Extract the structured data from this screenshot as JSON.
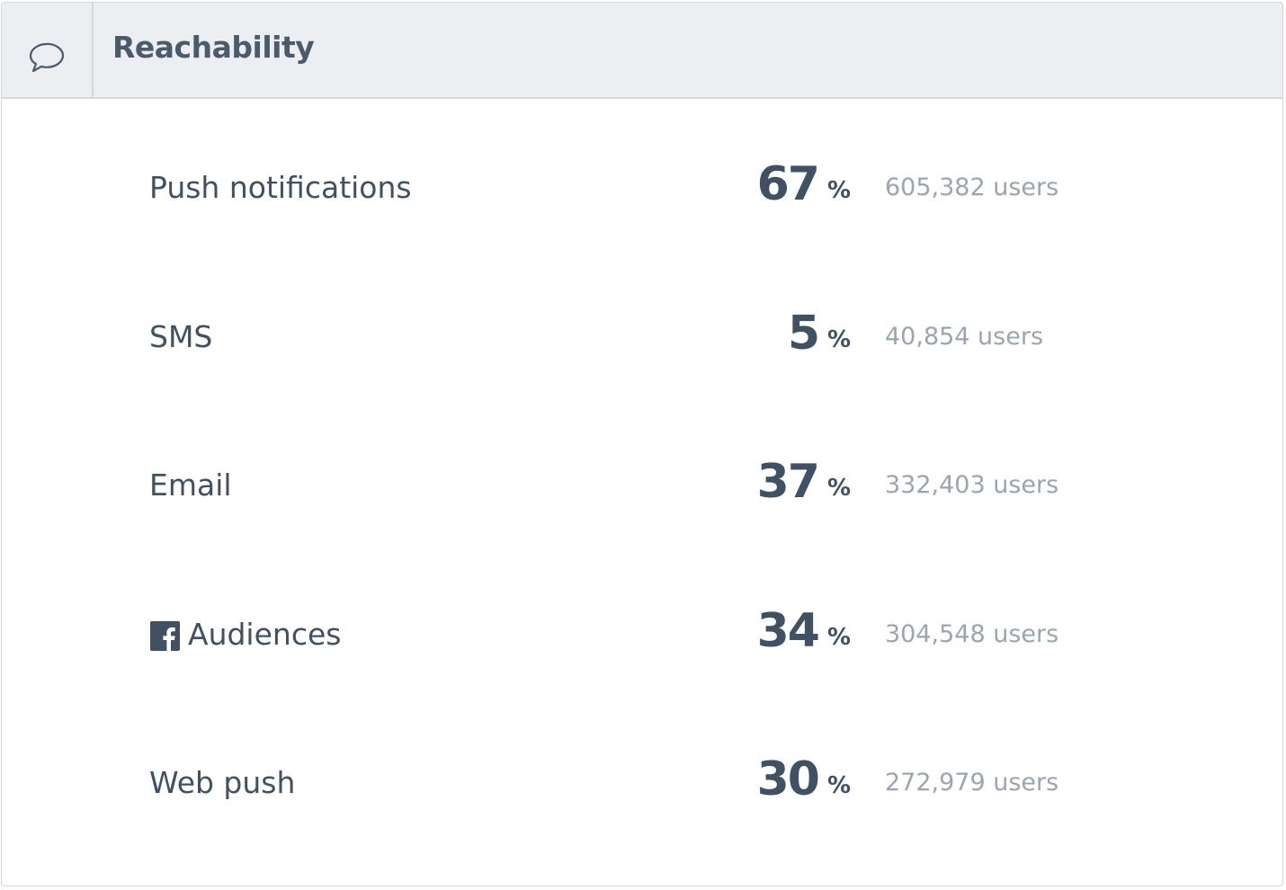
{
  "header": {
    "title": "Reachability"
  },
  "rows": [
    {
      "label": "Push notifications",
      "percent": "67",
      "unit": "%",
      "users": "605,382 users"
    },
    {
      "label": "SMS",
      "percent": "5",
      "unit": "%",
      "users": "40,854 users"
    },
    {
      "label": "Email",
      "percent": "37",
      "unit": "%",
      "users": "332,403 users"
    },
    {
      "label": "Audiences",
      "percent": "34",
      "unit": "%",
      "users": "304,548 users"
    },
    {
      "label": "Web push",
      "percent": "30",
      "unit": "%",
      "users": "272,979 users"
    }
  ]
}
